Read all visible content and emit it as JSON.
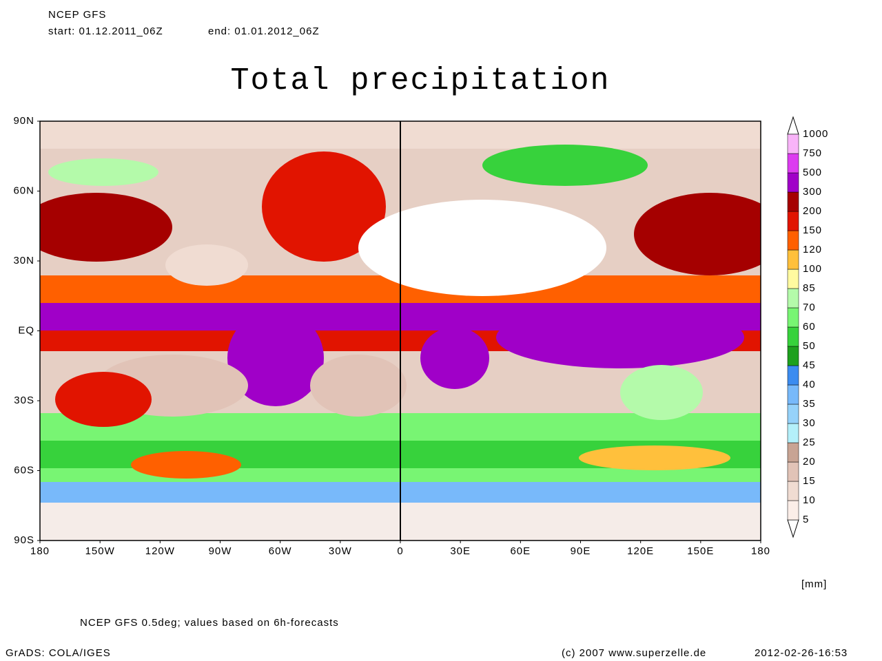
{
  "header": {
    "model": "NCEP GFS",
    "start": "start: 01.12.2011_06Z",
    "end": "end: 01.01.2012_06Z"
  },
  "title": "Total precipitation",
  "map": {
    "lat_labels": [
      "90N",
      "60N",
      "30N",
      "EQ",
      "30S",
      "60S",
      "90S"
    ],
    "lon_labels": [
      "180",
      "150W",
      "120W",
      "90W",
      "60W",
      "30W",
      "0",
      "30E",
      "60E",
      "90E",
      "120E",
      "150E",
      "180"
    ]
  },
  "colorbar": {
    "levels": [
      5,
      10,
      15,
      20,
      25,
      30,
      35,
      40,
      45,
      50,
      60,
      70,
      85,
      100,
      120,
      150,
      200,
      300,
      500,
      750,
      1000
    ],
    "colors": [
      "#fbeee8",
      "#f0dcd2",
      "#e1c3b7",
      "#c8a494",
      "#b4f0fa",
      "#96d2fa",
      "#78b9fa",
      "#3c8cf0",
      "#1ea01e",
      "#37d23c",
      "#78f573",
      "#b4faaa",
      "#fffaa0",
      "#ffc03c",
      "#ff6000",
      "#e11400",
      "#a50000",
      "#a000c8",
      "#dc3cf0",
      "#f8b4f8"
    ],
    "unit": "[mm]"
  },
  "footer": {
    "note": "NCEP GFS 0.5deg; values based on 6h-forecasts",
    "software": "GrADS: COLA/IGES",
    "copyright": "(c) 2007 www.superzelle.de",
    "timestamp": "2012-02-26-16:53"
  }
}
